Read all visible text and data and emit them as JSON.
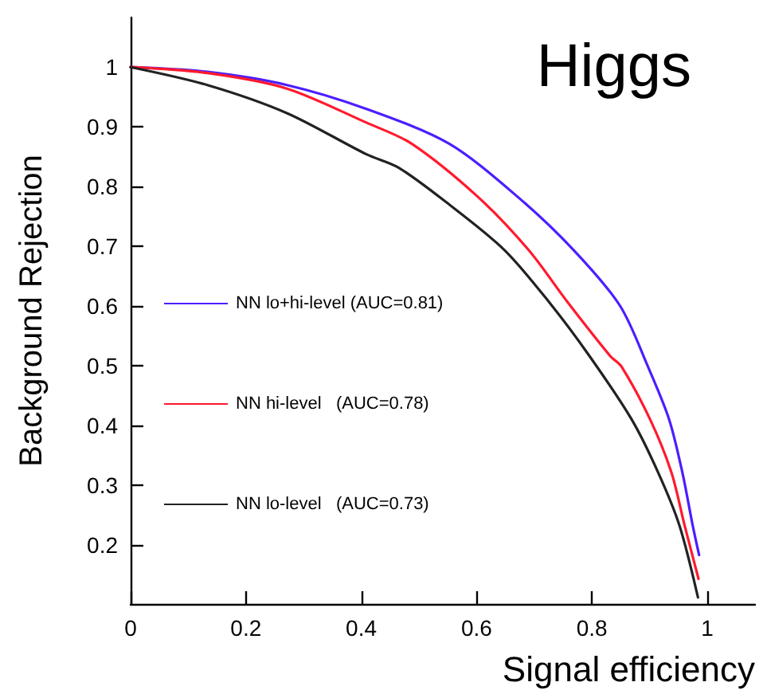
{
  "chart_data": {
    "type": "line",
    "title": "Higgs",
    "xlabel": "Signal efficiency",
    "ylabel": "Background Rejection",
    "xlim": [
      0,
      1.083
    ],
    "ylim": [
      0.101,
      1.083
    ],
    "xticks": [
      0,
      0.2,
      0.4,
      0.6,
      0.8,
      1
    ],
    "yticks": [
      0.2,
      0.3,
      0.4,
      0.5,
      0.6,
      0.7,
      0.8,
      0.9,
      1
    ],
    "grid": false,
    "legend": "left",
    "marker": "none",
    "line_style": "solid",
    "series": [
      {
        "name": "NN lo+hi-level (AUC=0.81)",
        "color": "#4b1eff",
        "x": [
          0,
          0.133,
          0.271,
          0.409,
          0.552,
          0.671,
          0.768,
          0.849,
          0.897,
          0.934,
          0.957,
          0.975,
          0.986
        ],
        "values": [
          1,
          0.992,
          0.97,
          0.93,
          0.872,
          0.783,
          0.694,
          0.6,
          0.499,
          0.41,
          0.321,
          0.232,
          0.183
        ]
      },
      {
        "name": "NN hi-level   (AUC=0.78)",
        "color": "#ff1a2e",
        "x": [
          0,
          0.133,
          0.271,
          0.409,
          0.487,
          0.602,
          0.69,
          0.759,
          0.832,
          0.851,
          0.901,
          0.938,
          0.961,
          0.985
        ],
        "values": [
          1,
          0.99,
          0.964,
          0.907,
          0.872,
          0.783,
          0.694,
          0.605,
          0.516,
          0.499,
          0.41,
          0.321,
          0.232,
          0.143
        ]
      },
      {
        "name": "NN lo-level   (AUC=0.73)",
        "color": "#222222",
        "x": [
          0,
          0.133,
          0.271,
          0.409,
          0.464,
          0.547,
          0.648,
          0.727,
          0.796,
          0.869,
          0.915,
          0.952,
          0.984
        ],
        "values": [
          1,
          0.97,
          0.923,
          0.854,
          0.832,
          0.774,
          0.694,
          0.605,
          0.516,
          0.41,
          0.321,
          0.232,
          0.112
        ]
      }
    ]
  }
}
